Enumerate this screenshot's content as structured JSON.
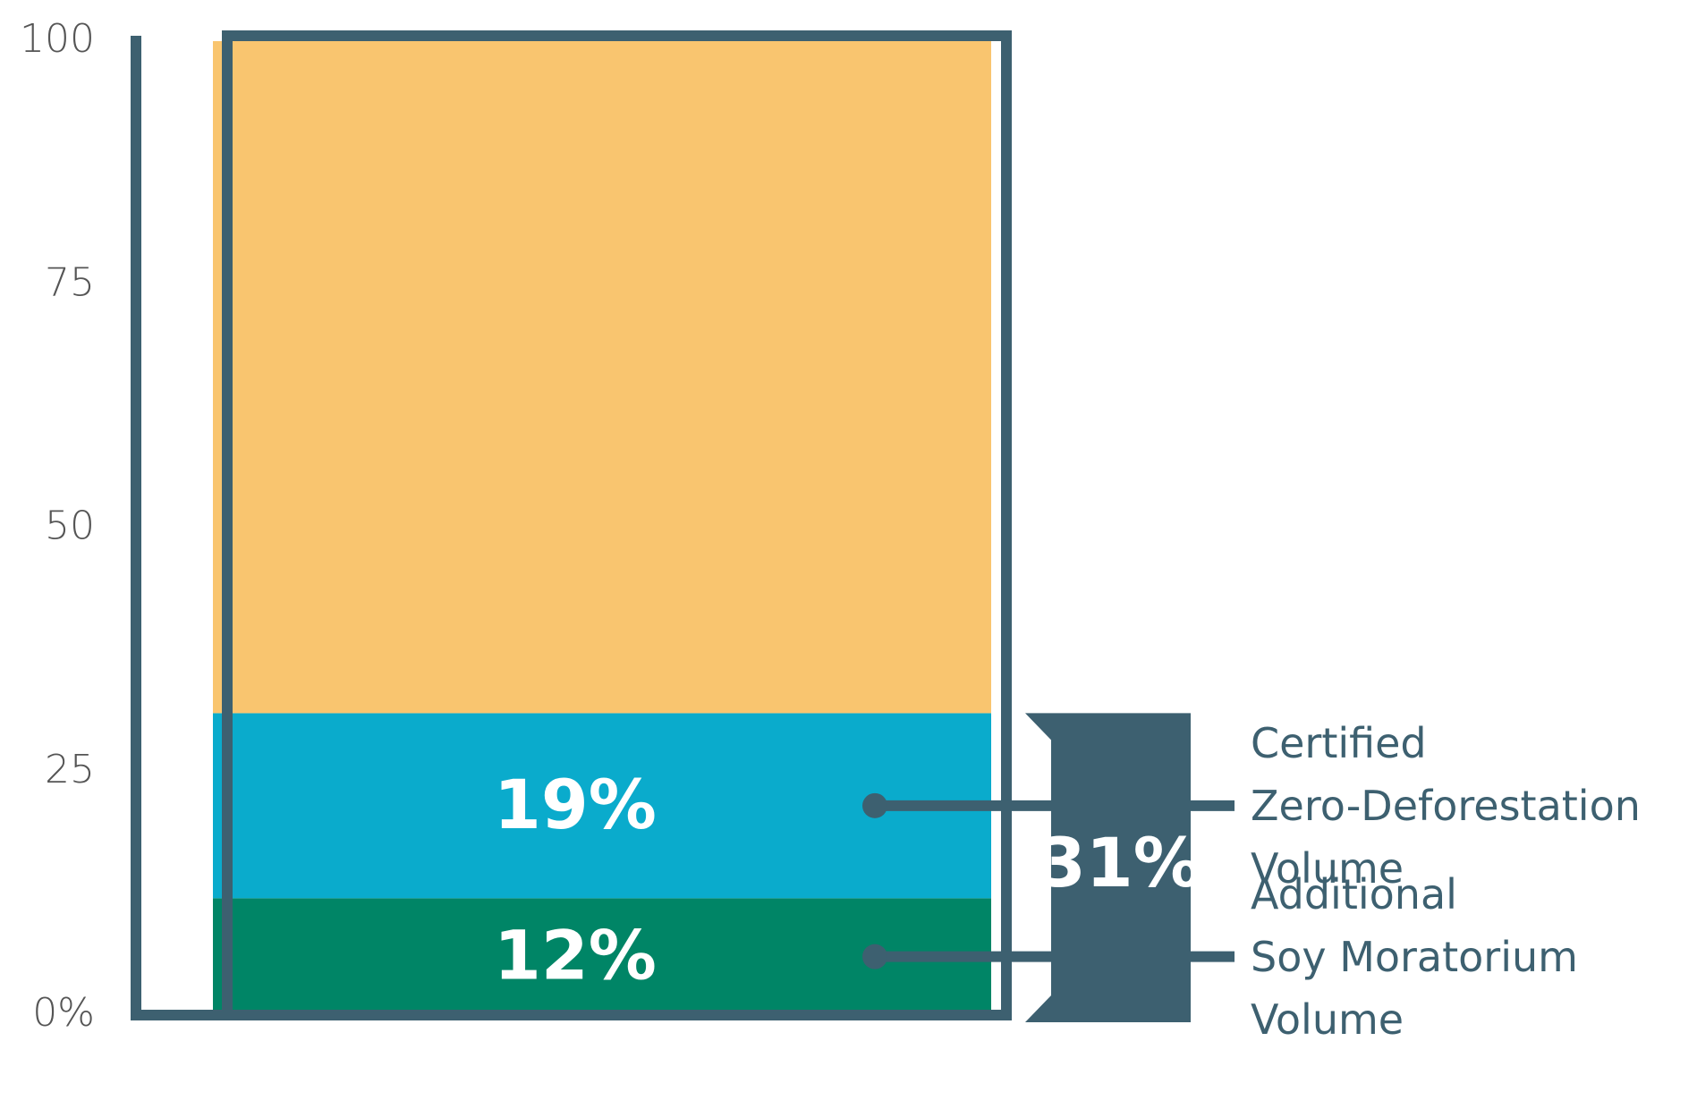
{
  "chart_data": {
    "type": "stacked_bar",
    "categories": [
      null
    ],
    "series": [
      {
        "name": "Additional\nSoy Moratorium\nVolume",
        "color": "#008566",
        "values": [
          12
        ],
        "value_labels": [
          "12%"
        ]
      },
      {
        "name": "Certified\nZero-Deforestation\nVolume",
        "color": "#0aabcc",
        "values": [
          19
        ],
        "value_labels": [
          "19%"
        ]
      },
      {
        "color": "#f9c56f",
        "values": [
          69
        ]
      }
    ],
    "annotations": [
      {
        "value": 31,
        "label": "31%"
      }
    ],
    "ylim": [
      0,
      100
    ],
    "yticks": [
      {
        "value": 0,
        "label": "0%"
      },
      25,
      50,
      75,
      100
    ],
    "outline_color": "#3d6070"
  }
}
